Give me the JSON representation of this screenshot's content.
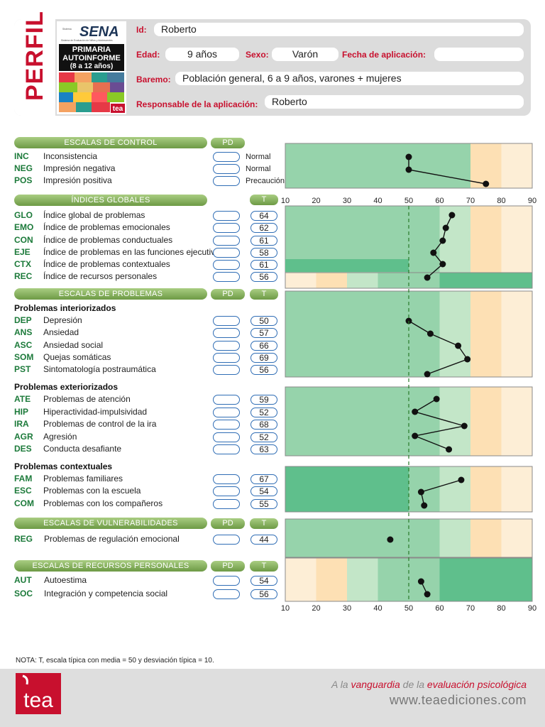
{
  "header": {
    "perfil_word": "PERFIL",
    "logo": {
      "brand": "SENA",
      "brand_sub": "Sistema de Evaluación de Niños y Adolescentes",
      "line1": "PRIMARIA",
      "line2": "AUTOINFORME",
      "line3": "(8 a 12 años)",
      "publisher": "tea"
    },
    "id_label": "Id:",
    "id_value": "Roberto",
    "edad_label": "Edad:",
    "edad_value": "9 años",
    "sexo_label": "Sexo:",
    "sexo_value": "Varón",
    "fecha_label": "Fecha de aplicación:",
    "fecha_value": "",
    "baremo_label": "Baremo:",
    "baremo_value": "Población general, 6 a 9 años, varones + mujeres",
    "responsable_label": "Responsable de la aplicación:",
    "responsable_value": "Roberto"
  },
  "labels": {
    "pd": "PD",
    "t": "T"
  },
  "sections": {
    "control": "ESCALAS DE CONTROL",
    "globales": "ÍNDICES GLOBALES",
    "problemas": "ESCALAS DE PROBLEMAS",
    "vulnerabilidades": "ESCALAS DE VULNERABILIDADES",
    "recursos": "ESCALAS DE RECURSOS PERSONALES"
  },
  "groups": {
    "interiorizados": "Problemas interiorizados",
    "exteriorizados": "Problemas exteriorizados",
    "contextuales": "Problemas contextuales"
  },
  "control_rows": [
    {
      "abbr": "INC",
      "name": "Inconsistencia",
      "status": "Normal"
    },
    {
      "abbr": "NEG",
      "name": "Impresión negativa",
      "status": "Normal"
    },
    {
      "abbr": "POS",
      "name": "Impresión positiva",
      "status": "Precaución"
    }
  ],
  "global_rows": [
    {
      "abbr": "GLO",
      "name": "Índice global de problemas",
      "t": "64"
    },
    {
      "abbr": "EMO",
      "name": "Índice de problemas emocionales",
      "t": "62"
    },
    {
      "abbr": "CON",
      "name": "Índice de problemas conductuales",
      "t": "61"
    },
    {
      "abbr": "EJE",
      "name": "Índice de problemas en las funciones ejecutivas",
      "t": "58"
    },
    {
      "abbr": "CTX",
      "name": "Índice de problemas contextuales",
      "t": "61"
    },
    {
      "abbr": "REC",
      "name": "Índice de recursos personales",
      "t": "56"
    }
  ],
  "interiorizados_rows": [
    {
      "abbr": "DEP",
      "name": "Depresión",
      "t": "50"
    },
    {
      "abbr": "ANS",
      "name": "Ansiedad",
      "t": "57"
    },
    {
      "abbr": "ASC",
      "name": "Ansiedad social",
      "t": "66"
    },
    {
      "abbr": "SOM",
      "name": "Quejas somáticas",
      "t": "69"
    },
    {
      "abbr": "PST",
      "name": "Sintomatología postraumática",
      "t": "56"
    }
  ],
  "exteriorizados_rows": [
    {
      "abbr": "ATE",
      "name": "Problemas de atención",
      "t": "59"
    },
    {
      "abbr": "HIP",
      "name": "Hiperactividad-impulsividad",
      "t": "52"
    },
    {
      "abbr": "IRA",
      "name": "Problemas de control de la ira",
      "t": "68"
    },
    {
      "abbr": "AGR",
      "name": "Agresión",
      "t": "52"
    },
    {
      "abbr": "DES",
      "name": "Conducta desafiante",
      "t": "63"
    }
  ],
  "contextuales_rows": [
    {
      "abbr": "FAM",
      "name": "Problemas familiares",
      "t": "67"
    },
    {
      "abbr": "ESC",
      "name": "Problemas con la escuela",
      "t": "54"
    },
    {
      "abbr": "COM",
      "name": "Problemas con los compañeros",
      "t": "55"
    }
  ],
  "vulnerabilidad_rows": [
    {
      "abbr": "REG",
      "name": "Problemas de regulación emocional",
      "t": "44"
    }
  ],
  "recursos_rows": [
    {
      "abbr": "AUT",
      "name": "Autoestima",
      "t": "54"
    },
    {
      "abbr": "SOC",
      "name": "Integración y competencia social",
      "t": "56"
    }
  ],
  "chart_data": {
    "type": "line",
    "xlim": [
      10,
      90
    ],
    "ticks": [
      "10",
      "20",
      "30",
      "40",
      "50",
      "60",
      "70",
      "80",
      "90"
    ],
    "mean_line": 50,
    "control_profile": [
      {
        "scale": "INC",
        "value": 50
      },
      {
        "scale": "NEG",
        "value": 50
      },
      {
        "scale": "POS",
        "value": 75
      }
    ],
    "globales_profile": [
      {
        "scale": "GLO",
        "value": 64
      },
      {
        "scale": "EMO",
        "value": 62
      },
      {
        "scale": "CON",
        "value": 61
      },
      {
        "scale": "EJE",
        "value": 58
      },
      {
        "scale": "CTX",
        "value": 61
      },
      {
        "scale": "REC",
        "value": 56
      }
    ],
    "interiorizados_profile": [
      {
        "scale": "DEP",
        "value": 50
      },
      {
        "scale": "ANS",
        "value": 57
      },
      {
        "scale": "ASC",
        "value": 66
      },
      {
        "scale": "SOM",
        "value": 69
      },
      {
        "scale": "PST",
        "value": 56
      }
    ],
    "exteriorizados_profile": [
      {
        "scale": "ATE",
        "value": 59
      },
      {
        "scale": "HIP",
        "value": 52
      },
      {
        "scale": "IRA",
        "value": 68
      },
      {
        "scale": "AGR",
        "value": 52
      },
      {
        "scale": "DES",
        "value": 63
      }
    ],
    "contextuales_profile": [
      {
        "scale": "FAM",
        "value": 67
      },
      {
        "scale": "ESC",
        "value": 54
      },
      {
        "scale": "COM",
        "value": 55
      }
    ],
    "vulnerabilidades_profile": [
      {
        "scale": "REG",
        "value": 44
      }
    ],
    "recursos_profile": [
      {
        "scale": "AUT",
        "value": 54
      },
      {
        "scale": "SOC",
        "value": 56
      }
    ]
  },
  "footer": {
    "nota": "NOTA: T, escala típica con media = 50 y desviación típica = 10.",
    "slogan_1": "A la ",
    "slogan_2": "vanguardia",
    "slogan_3": " de la ",
    "slogan_4": "evaluación psicológica",
    "web": "www.teaediciones.com",
    "logo_text": "tea"
  },
  "colors": {
    "accent_red": "#c8102e",
    "abbr_green": "#1c7a3a",
    "pill_blue": "#2f6db5",
    "band_dark": "#5fbf8c",
    "band_mid": "#96d3ab",
    "band_light": "#c3e6c8",
    "band_orange": "#fde0b4",
    "band_cream": "#fdeed6"
  }
}
